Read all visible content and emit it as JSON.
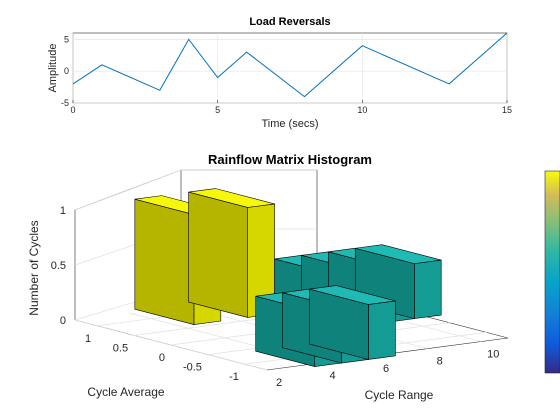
{
  "chart_data": [
    {
      "type": "line",
      "title": "Load Reversals",
      "xlabel": "Time (secs)",
      "ylabel": "Amplitude",
      "xlim": [
        0,
        15
      ],
      "ylim": [
        -5,
        6
      ],
      "xticks": [
        0,
        5,
        10,
        15
      ],
      "yticks": [
        -5,
        0,
        5
      ],
      "grid": true,
      "color": "#0072BD",
      "x": [
        0,
        1,
        3,
        4,
        5,
        6,
        8,
        10,
        13,
        15
      ],
      "y": [
        -2,
        1,
        -3,
        5,
        -1,
        3,
        -4,
        4,
        -2,
        6
      ]
    },
    {
      "type": "bar3d",
      "title": "Rainflow Matrix Histogram",
      "xlabel": "Cycle Range",
      "ylabel": "Cycle Average",
      "zlabel": "Number of Cycles",
      "xlim": [
        2,
        11
      ],
      "ylim": [
        -1.3,
        1.3
      ],
      "zlim": [
        0,
        1
      ],
      "xticks": [
        2,
        4,
        6,
        8,
        10
      ],
      "yticks": [
        -1,
        -0.5,
        0,
        0.5,
        1
      ],
      "zticks": [
        0,
        0.5,
        1
      ],
      "grid": true,
      "colorbar": true,
      "bars": [
        {
          "range": 5,
          "average": 1.0,
          "count": 1
        },
        {
          "range": 7,
          "average": 1.0,
          "count": 1
        },
        {
          "range": 8,
          "average": 0.2,
          "count": 0.5
        },
        {
          "range": 9,
          "average": 0.2,
          "count": 0.5
        },
        {
          "range": 10,
          "average": 0.2,
          "count": 0.5
        },
        {
          "range": 11,
          "average": 0.2,
          "count": 0.5
        },
        {
          "range": 4,
          "average": -1.0,
          "count": 0.5
        },
        {
          "range": 5,
          "average": -1.0,
          "count": 0.5
        },
        {
          "range": 6,
          "average": -1.0,
          "count": 0.5
        }
      ]
    }
  ]
}
